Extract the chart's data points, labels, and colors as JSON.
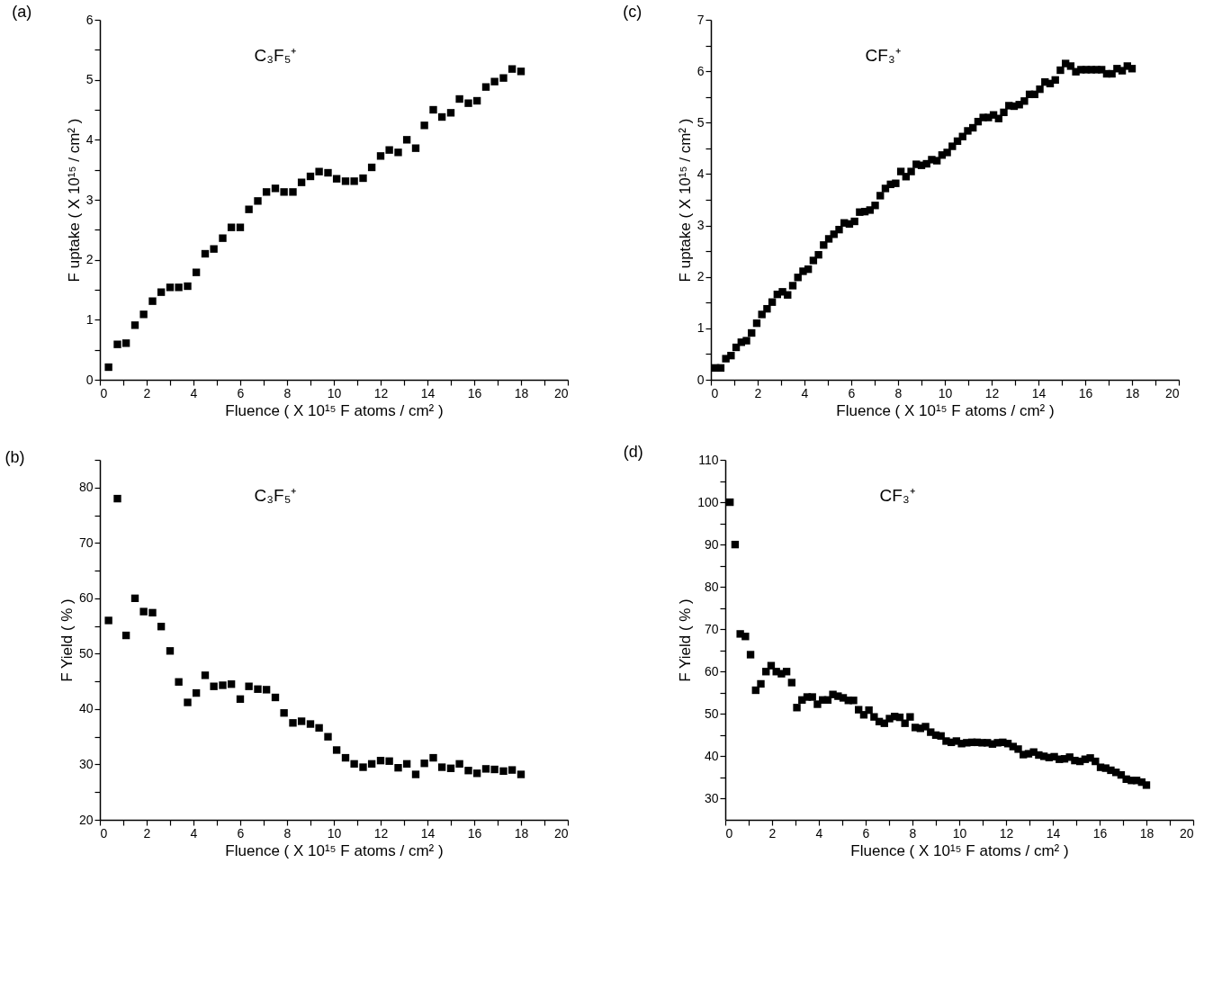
{
  "chart_data": [
    {
      "type": "scatter",
      "title": "(a)",
      "xlabel": "Fluence ( X 10¹⁵ F atoms / cm² )",
      "ylabel": "F uptake ( X 10¹⁵ / cm² )",
      "annotations": [
        "C₃F₅⁺"
      ],
      "marker": "square",
      "grid": false,
      "xlim": [
        0,
        20
      ],
      "xticks": [
        0,
        {
          "value": 1,
          "label": null
        },
        2,
        {
          "value": 3,
          "label": null
        },
        4,
        {
          "value": 5,
          "label": null
        },
        6,
        {
          "value": 7,
          "label": null
        },
        8,
        {
          "value": 9,
          "label": null
        },
        10,
        {
          "value": 11,
          "label": null
        },
        12,
        {
          "value": 13,
          "label": null
        },
        14,
        {
          "value": 15,
          "label": null
        },
        16,
        {
          "value": 17,
          "label": null
        },
        18,
        {
          "value": 19,
          "label": null
        },
        20
      ],
      "ylim": [
        0,
        6
      ],
      "yticks": [
        0,
        {
          "value": 0.5,
          "label": null
        },
        1,
        {
          "value": 1.5,
          "label": null
        },
        2,
        {
          "value": 2.5,
          "label": null
        },
        3,
        {
          "value": 3.5,
          "label": null
        },
        4,
        {
          "value": 4.5,
          "label": null
        },
        5,
        {
          "value": 5.5,
          "label": null
        },
        6
      ],
      "x": [
        0.37,
        0.75,
        1.12,
        1.5,
        1.87,
        2.25,
        2.62,
        3.0,
        3.37,
        3.75,
        4.12,
        4.5,
        4.87,
        5.25,
        5.62,
        6.0,
        6.37,
        6.75,
        7.12,
        7.5,
        7.87,
        8.25,
        8.62,
        9.0,
        9.37,
        9.75,
        10.12,
        10.5,
        10.87,
        11.25,
        11.62,
        12.0,
        12.37,
        12.75,
        13.12,
        13.5,
        13.87,
        14.25,
        14.62,
        15.0,
        15.37,
        15.75,
        16.12,
        16.5,
        16.87,
        17.25,
        17.62,
        18.0
      ],
      "series": [
        {
          "color": "#000000",
          "values": [
            0.21,
            0.59,
            0.61,
            0.91,
            1.09,
            1.31,
            1.46,
            1.54,
            1.54,
            1.56,
            1.79,
            2.1,
            2.18,
            2.36,
            2.54,
            2.54,
            2.84,
            2.98,
            3.13,
            3.19,
            3.13,
            3.13,
            3.29,
            3.39,
            3.47,
            3.45,
            3.35,
            3.31,
            3.31,
            3.36,
            3.54,
            3.73,
            3.83,
            3.79,
            4.0,
            3.86,
            4.24,
            4.5,
            4.38,
            4.45,
            4.68,
            4.61,
            4.65,
            4.88,
            4.97,
            5.03,
            5.18,
            5.14
          ]
        }
      ]
    },
    {
      "type": "scatter",
      "title": "(c)",
      "xlabel": "Fluence ( X 10¹⁵ F atoms / cm² )",
      "ylabel": "F uptake ( X 10¹⁵ / cm² )",
      "annotations": [
        "CF₃⁺"
      ],
      "marker": "square",
      "grid": false,
      "xlim": [
        0,
        20
      ],
      "xticks": [
        0,
        {
          "value": 1,
          "label": null
        },
        2,
        {
          "value": 3,
          "label": null
        },
        4,
        {
          "value": 5,
          "label": null
        },
        6,
        {
          "value": 7,
          "label": null
        },
        8,
        {
          "value": 9,
          "label": null
        },
        10,
        {
          "value": 11,
          "label": null
        },
        12,
        {
          "value": 13,
          "label": null
        },
        14,
        {
          "value": 15,
          "label": null
        },
        16,
        {
          "value": 17,
          "label": null
        },
        18,
        {
          "value": 19,
          "label": null
        },
        20
      ],
      "ylim": [
        0,
        7
      ],
      "yticks": [
        0,
        {
          "value": 0.5,
          "label": null
        },
        1,
        {
          "value": 1.5,
          "label": null
        },
        2,
        {
          "value": 2.5,
          "label": null
        },
        3,
        {
          "value": 3.5,
          "label": null
        },
        4,
        {
          "value": 4.5,
          "label": null
        },
        5,
        {
          "value": 5.5,
          "label": null
        },
        6,
        {
          "value": 6.5,
          "label": null
        },
        7
      ],
      "x": [
        0.2,
        0.42,
        0.64,
        0.86,
        1.08,
        1.3,
        1.52,
        1.74,
        1.96,
        2.18,
        2.4,
        2.62,
        2.84,
        3.06,
        3.28,
        3.5,
        3.72,
        3.94,
        4.16,
        4.38,
        4.6,
        4.82,
        5.04,
        5.26,
        5.48,
        5.7,
        5.92,
        6.14,
        6.36,
        6.58,
        6.8,
        7.02,
        7.24,
        7.46,
        7.68,
        7.9,
        8.12,
        8.34,
        8.56,
        8.78,
        9.0,
        9.22,
        9.44,
        9.66,
        9.88,
        10.1,
        10.32,
        10.54,
        10.76,
        10.98,
        11.2,
        11.42,
        11.64,
        11.86,
        12.08,
        12.3,
        12.52,
        12.74,
        12.96,
        13.18,
        13.4,
        13.62,
        13.84,
        14.06,
        14.28,
        14.5,
        14.72,
        14.94,
        15.16,
        15.38,
        15.6,
        15.82,
        16.04,
        16.26,
        16.48,
        16.7,
        16.92,
        17.14,
        17.36,
        17.58,
        17.8,
        18.0
      ],
      "series": [
        {
          "color": "#000000",
          "values": [
            0.23,
            0.23,
            0.41,
            0.47,
            0.63,
            0.73,
            0.76,
            0.91,
            1.1,
            1.27,
            1.38,
            1.51,
            1.66,
            1.71,
            1.65,
            1.83,
            1.99,
            2.11,
            2.15,
            2.32,
            2.43,
            2.62,
            2.74,
            2.83,
            2.92,
            3.05,
            3.03,
            3.08,
            3.26,
            3.27,
            3.3,
            3.39,
            3.58,
            3.72,
            3.8,
            3.82,
            4.05,
            3.95,
            4.05,
            4.19,
            4.17,
            4.2,
            4.28,
            4.26,
            4.37,
            4.42,
            4.54,
            4.64,
            4.73,
            4.84,
            4.9,
            5.02,
            5.1,
            5.1,
            5.15,
            5.08,
            5.2,
            5.33,
            5.32,
            5.35,
            5.42,
            5.55,
            5.55,
            5.65,
            5.79,
            5.76,
            5.83,
            6.02,
            6.15,
            6.1,
            5.99,
            6.03,
            6.03,
            6.03,
            6.03,
            6.03,
            5.95,
            5.95,
            6.05,
            6.01,
            6.1,
            6.05
          ]
        }
      ]
    },
    {
      "type": "scatter",
      "title": "(b)",
      "xlabel": "Fluence ( X 10¹⁵ F atoms / cm² )",
      "ylabel": "F Yield ( % )",
      "annotations": [
        "C₃F₅⁺"
      ],
      "marker": "square",
      "grid": false,
      "xlim": [
        0,
        20
      ],
      "xticks": [
        0,
        {
          "value": 1,
          "label": null
        },
        2,
        {
          "value": 3,
          "label": null
        },
        4,
        {
          "value": 5,
          "label": null
        },
        6,
        {
          "value": 7,
          "label": null
        },
        8,
        {
          "value": 9,
          "label": null
        },
        10,
        {
          "value": 11,
          "label": null
        },
        12,
        {
          "value": 13,
          "label": null
        },
        14,
        {
          "value": 15,
          "label": null
        },
        16,
        {
          "value": 17,
          "label": null
        },
        18,
        {
          "value": 19,
          "label": null
        },
        20
      ],
      "ylim": [
        20,
        85
      ],
      "yticks": [
        20,
        {
          "value": 25,
          "label": null
        },
        30,
        {
          "value": 35,
          "label": null
        },
        40,
        {
          "value": 45,
          "label": null
        },
        50,
        {
          "value": 55,
          "label": null
        },
        60,
        {
          "value": 65,
          "label": null
        },
        70,
        {
          "value": 75,
          "label": null
        },
        80,
        {
          "value": 85,
          "label": null
        }
      ],
      "x": [
        0.37,
        0.75,
        1.12,
        1.5,
        1.87,
        2.25,
        2.62,
        3.0,
        3.37,
        3.75,
        4.12,
        4.5,
        4.87,
        5.25,
        5.62,
        6.0,
        6.37,
        6.75,
        7.12,
        7.5,
        7.87,
        8.25,
        8.62,
        9.0,
        9.37,
        9.75,
        10.12,
        10.5,
        10.87,
        11.25,
        11.62,
        12.0,
        12.37,
        12.75,
        13.12,
        13.5,
        13.87,
        14.25,
        14.62,
        15.0,
        15.37,
        15.75,
        16.12,
        16.5,
        16.87,
        17.25,
        17.62,
        18.0
      ],
      "series": [
        {
          "color": "#000000",
          "values": [
            56,
            78,
            53.3,
            60,
            57.6,
            57.4,
            54.9,
            50.5,
            44.9,
            41.2,
            42.9,
            46.1,
            44.1,
            44.3,
            44.5,
            41.8,
            44.1,
            43.6,
            43.5,
            42.1,
            39.3,
            37.5,
            37.8,
            37.3,
            36.6,
            35,
            32.6,
            31.2,
            30.1,
            29.5,
            30.1,
            30.7,
            30.6,
            29.4,
            30.1,
            28.2,
            30.2,
            31.2,
            29.5,
            29.3,
            30.1,
            28.9,
            28.4,
            29.2,
            29.1,
            28.8,
            29.0,
            28.2
          ]
        }
      ]
    },
    {
      "type": "scatter",
      "title": "(d)",
      "xlabel": "Fluence ( X 10¹⁵ F atoms / cm² )",
      "ylabel": "F Yield ( % )",
      "annotations": [
        "CF₃⁺"
      ],
      "marker": "square",
      "grid": false,
      "xlim": [
        0,
        20
      ],
      "xticks": [
        0,
        {
          "value": 1,
          "label": null
        },
        2,
        {
          "value": 3,
          "label": null
        },
        4,
        {
          "value": 5,
          "label": null
        },
        6,
        {
          "value": 7,
          "label": null
        },
        8,
        {
          "value": 9,
          "label": null
        },
        10,
        {
          "value": 11,
          "label": null
        },
        12,
        {
          "value": 13,
          "label": null
        },
        14,
        {
          "value": 15,
          "label": null
        },
        16,
        {
          "value": 17,
          "label": null
        },
        18,
        {
          "value": 19,
          "label": null
        },
        20
      ],
      "ylim": [
        25,
        110
      ],
      "yticks": [
        30,
        {
          "value": 35,
          "label": null
        },
        40,
        {
          "value": 45,
          "label": null
        },
        50,
        {
          "value": 55,
          "label": null
        },
        60,
        {
          "value": 65,
          "label": null
        },
        70,
        {
          "value": 75,
          "label": null
        },
        80,
        {
          "value": 85,
          "label": null
        },
        90,
        {
          "value": 95,
          "label": null
        },
        100,
        {
          "value": 105,
          "label": null
        },
        110
      ],
      "x": [
        0.2,
        0.42,
        0.64,
        0.86,
        1.08,
        1.3,
        1.52,
        1.74,
        1.96,
        2.18,
        2.4,
        2.62,
        2.84,
        3.06,
        3.28,
        3.5,
        3.72,
        3.94,
        4.16,
        4.38,
        4.6,
        4.82,
        5.04,
        5.26,
        5.48,
        5.7,
        5.92,
        6.14,
        6.36,
        6.58,
        6.8,
        7.02,
        7.24,
        7.46,
        7.68,
        7.9,
        8.12,
        8.34,
        8.56,
        8.78,
        9.0,
        9.22,
        9.44,
        9.66,
        9.88,
        10.1,
        10.32,
        10.54,
        10.76,
        10.98,
        11.2,
        11.42,
        11.64,
        11.86,
        12.08,
        12.3,
        12.52,
        12.74,
        12.96,
        13.18,
        13.4,
        13.62,
        13.84,
        14.06,
        14.28,
        14.5,
        14.72,
        14.94,
        15.16,
        15.38,
        15.6,
        15.82,
        16.04,
        16.26,
        16.48,
        16.7,
        16.92,
        17.14,
        17.36,
        17.58,
        17.8,
        18.0
      ],
      "series": [
        {
          "color": "#000000",
          "values": [
            100,
            90,
            68.9,
            68.3,
            64,
            55.6,
            57.1,
            60,
            61.4,
            60,
            59.5,
            60,
            57.4,
            51.5,
            53.3,
            54,
            54,
            52.3,
            53.3,
            53.3,
            54.6,
            54.2,
            53.8,
            53.2,
            53.2,
            51,
            49.8,
            50.9,
            49.3,
            48.2,
            47.8,
            48.9,
            49.4,
            49.2,
            47.8,
            49.3,
            46.8,
            46.6,
            47,
            45.7,
            45,
            44.8,
            43.6,
            43.3,
            43.6,
            43.0,
            43.2,
            43.3,
            43.3,
            43.2,
            43.2,
            42.9,
            43.2,
            43.3,
            43.0,
            42.3,
            41.7,
            40.4,
            40.6,
            41,
            40.3,
            40,
            39.7,
            39.9,
            39.3,
            39.4,
            39.8,
            39,
            38.8,
            39.3,
            39.6,
            38.8,
            37.4,
            37.2,
            36.7,
            36.2,
            35.6,
            34.6,
            34.3,
            34.3,
            33.9,
            33.2
          ]
        }
      ]
    }
  ]
}
